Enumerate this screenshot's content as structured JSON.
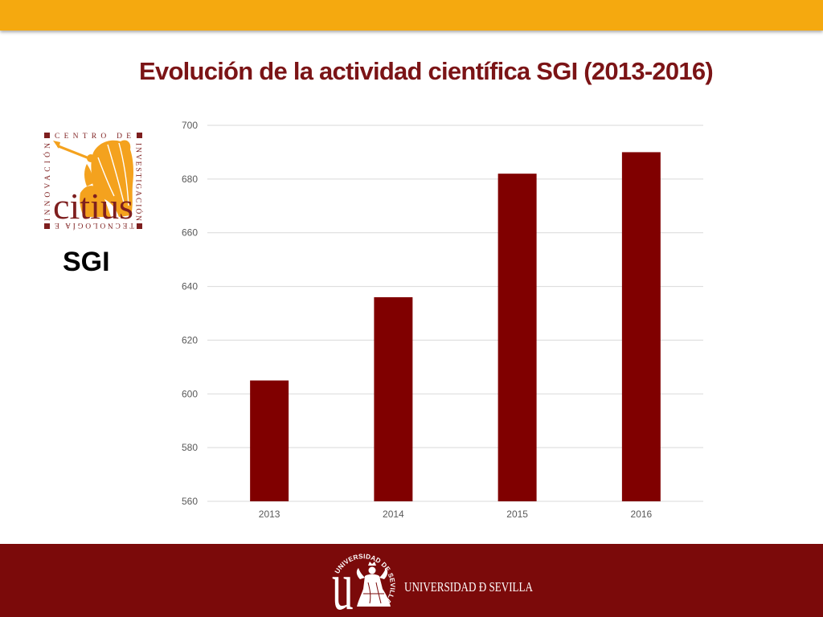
{
  "colors": {
    "top_bar": "#F5A90F",
    "title": "#7B1416",
    "footer": "#7B0A0A",
    "logo_frame": "#7E1F1F",
    "logo_figure": "#F4A21E"
  },
  "title": "Evolución de la actividad científica SGI (2013-2016)",
  "sidebar": {
    "logo": {
      "top_text": "CENTRO DE",
      "right_text": "INVESTIGACIÓN",
      "bottom_text": "TECNOLOGÍA E",
      "left_text": "INNOVACIÓN",
      "wordmark": "citius"
    },
    "label": "SGI"
  },
  "chart_data": {
    "type": "bar",
    "categories": [
      "2013",
      "2014",
      "2015",
      "2016"
    ],
    "values": [
      605,
      636,
      682,
      690
    ],
    "ylim": [
      560,
      700
    ],
    "yticks": [
      560,
      580,
      600,
      620,
      640,
      660,
      680,
      700
    ],
    "grid": true,
    "bar_color": "#800000"
  },
  "footer": {
    "logo": {
      "seal_text": "UNIVERSIDAD DE SEVILLA",
      "seal_letter": "u",
      "wordmark": "UNIVERSIDAD Ð SEVILLA"
    }
  }
}
